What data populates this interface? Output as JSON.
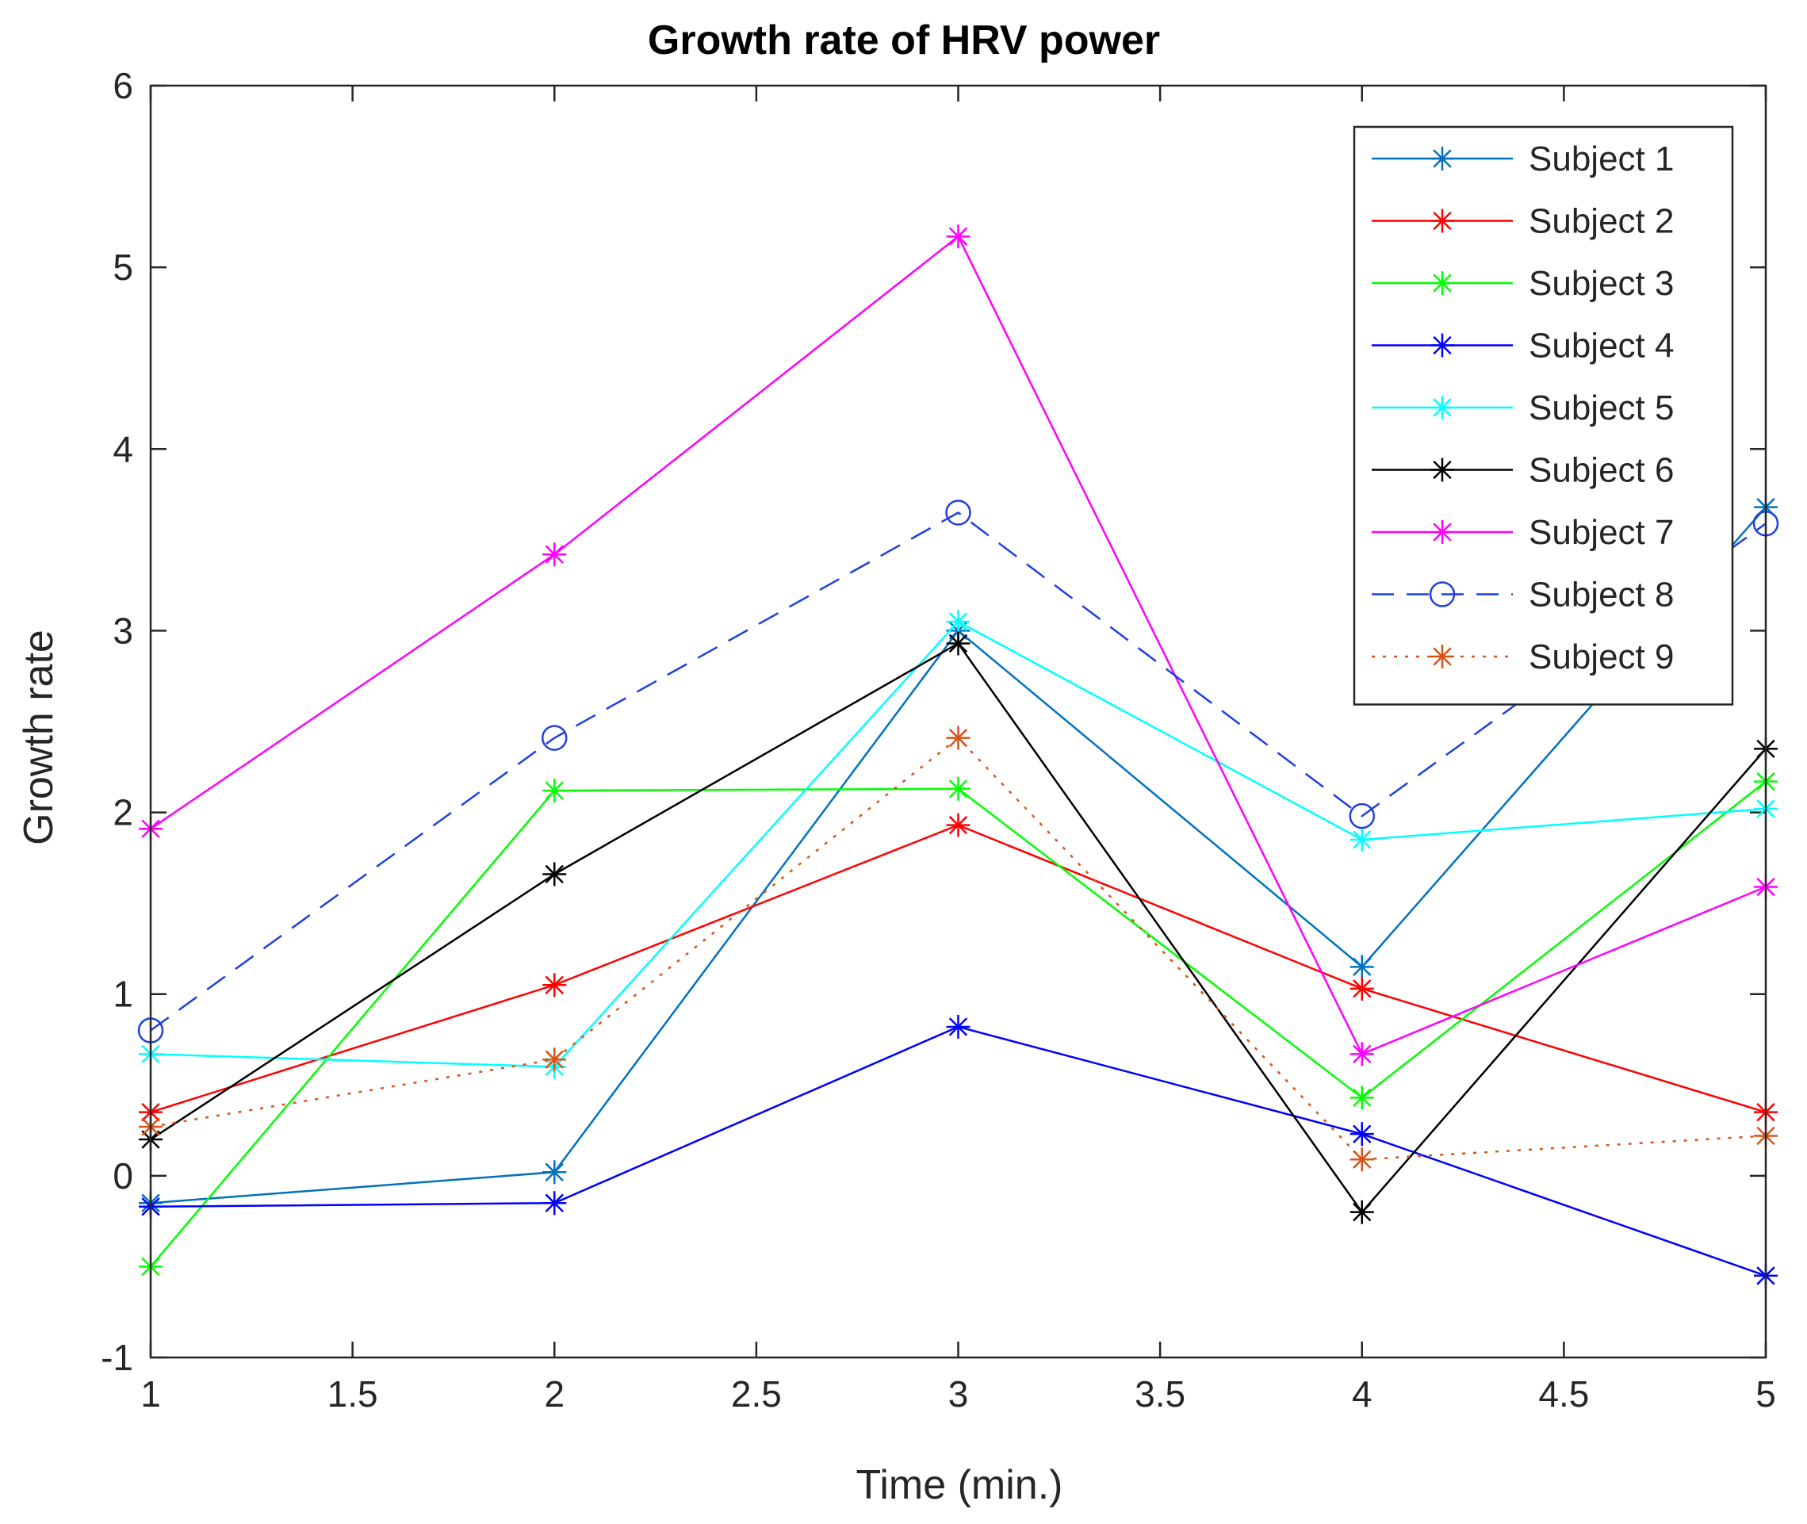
{
  "chart_data": {
    "type": "line",
    "title": "Growth rate of HRV power",
    "xlabel": "Time (min.)",
    "ylabel": "Growth rate",
    "xlim": [
      1,
      5
    ],
    "ylim": [
      -1,
      6
    ],
    "xticks": [
      "1",
      "1.5",
      "2",
      "2.5",
      "3",
      "3.5",
      "4",
      "4.5",
      "5"
    ],
    "yticks": [
      "-1",
      "0",
      "1",
      "2",
      "3",
      "4",
      "5",
      "6"
    ],
    "legend_position": "top-right",
    "x": [
      1,
      2,
      3,
      4,
      5
    ],
    "series": [
      {
        "name": "Subject 1",
        "color": "#0072BD",
        "dash": "solid",
        "marker": "asterisk",
        "values": [
          -0.15,
          0.02,
          3.0,
          1.15,
          3.68
        ]
      },
      {
        "name": "Subject 2",
        "color": "#FF0000",
        "dash": "solid",
        "marker": "asterisk",
        "values": [
          0.35,
          1.05,
          1.93,
          1.03,
          0.35
        ]
      },
      {
        "name": "Subject 3",
        "color": "#00FF00",
        "dash": "solid",
        "marker": "asterisk",
        "values": [
          -0.5,
          2.12,
          2.13,
          0.43,
          2.17
        ]
      },
      {
        "name": "Subject 4",
        "color": "#0000FF",
        "dash": "solid",
        "marker": "asterisk",
        "values": [
          -0.17,
          -0.15,
          0.82,
          0.23,
          -0.55
        ]
      },
      {
        "name": "Subject 5",
        "color": "#00FFFF",
        "dash": "solid",
        "marker": "asterisk",
        "values": [
          0.67,
          0.6,
          3.05,
          1.85,
          2.02
        ]
      },
      {
        "name": "Subject 6",
        "color": "#000000",
        "dash": "solid",
        "marker": "asterisk",
        "values": [
          0.2,
          1.66,
          2.93,
          -0.2,
          2.35
        ]
      },
      {
        "name": "Subject 7",
        "color": "#FF00FF",
        "dash": "solid",
        "marker": "asterisk",
        "values": [
          1.91,
          3.42,
          5.17,
          0.67,
          1.59
        ]
      },
      {
        "name": "Subject 8",
        "color": "#1F3FE0",
        "dash": "dashed",
        "marker": "circle",
        "values": [
          0.8,
          2.41,
          3.65,
          1.98,
          3.59
        ]
      },
      {
        "name": "Subject 9",
        "color": "#D95319",
        "dash": "dotted",
        "marker": "asterisk",
        "values": [
          0.27,
          0.64,
          2.41,
          0.09,
          0.22
        ]
      }
    ]
  }
}
